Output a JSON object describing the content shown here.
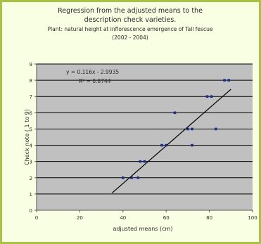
{
  "chart_data": {
    "type": "scatter",
    "title_lines": [
      "Regression from the adjusted means to the",
      "description check varieties.",
      "Plant: natural height at inflorescence emergence of Tall fescue",
      "(2002 - 2004)"
    ],
    "xlabel": "adjusted means (cm)",
    "ylabel": "Check note ( 1 to 9)",
    "xlim": [
      0,
      100
    ],
    "ylim": [
      0,
      9
    ],
    "xticks": [
      0,
      20,
      40,
      60,
      80,
      100
    ],
    "yticks": [
      0,
      1,
      2,
      3,
      4,
      5,
      6,
      7,
      8,
      9
    ],
    "grid": "horizontal",
    "equation": "y = 0.116x - 2.9935",
    "r_squared": "R² = 0.8744",
    "regression": {
      "slope": 0.116,
      "intercept": -2.9935,
      "x_start": 35,
      "x_end": 90
    },
    "points": [
      {
        "x": 40,
        "y": 2
      },
      {
        "x": 44,
        "y": 2
      },
      {
        "x": 47,
        "y": 2
      },
      {
        "x": 48,
        "y": 3
      },
      {
        "x": 50,
        "y": 3
      },
      {
        "x": 58,
        "y": 4
      },
      {
        "x": 60,
        "y": 4
      },
      {
        "x": 64,
        "y": 6
      },
      {
        "x": 70,
        "y": 5
      },
      {
        "x": 72,
        "y": 5
      },
      {
        "x": 72,
        "y": 4
      },
      {
        "x": 79,
        "y": 7
      },
      {
        "x": 81,
        "y": 7
      },
      {
        "x": 83,
        "y": 5
      },
      {
        "x": 87,
        "y": 8
      },
      {
        "x": 89,
        "y": 8
      }
    ]
  }
}
